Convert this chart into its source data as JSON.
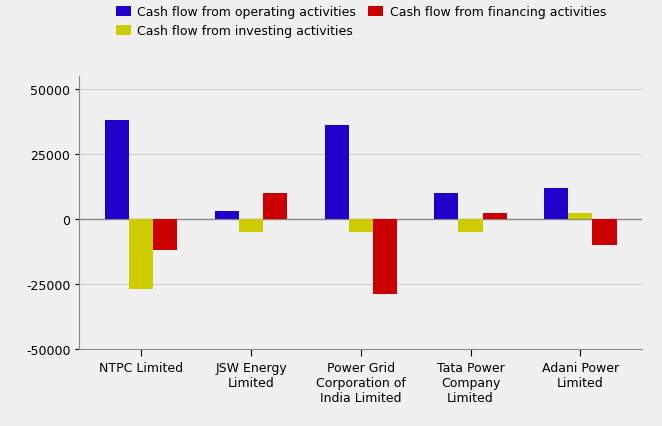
{
  "companies": [
    "NTPC Limited",
    "JSW Energy\nLimited",
    "Power Grid\nCorporation of\nIndia Limited",
    "Tata Power\nCompany\nLimited",
    "Adani Power\nLimited"
  ],
  "operating": [
    38000,
    3000,
    36000,
    10000,
    12000
  ],
  "investing": [
    -27000,
    -5000,
    -5000,
    -5000,
    2500
  ],
  "financing": [
    -12000,
    10000,
    -29000,
    2500,
    -10000
  ],
  "bar_colors": {
    "operating": "#2200CC",
    "investing": "#CCCC00",
    "financing": "#CC0000"
  },
  "legend_labels": [
    "Cash flow from operating activities",
    "Cash flow from investing activities",
    "Cash flow from financing activities"
  ],
  "ylim": [
    -50000,
    55000
  ],
  "yticks": [
    -50000,
    -25000,
    0,
    25000,
    50000
  ],
  "grid_color": "#cccccc",
  "background_color": "#f0f0f0",
  "plot_bg_color": "#e8e8e8",
  "bar_width": 0.22,
  "tick_fontsize": 9,
  "legend_fontsize": 9
}
